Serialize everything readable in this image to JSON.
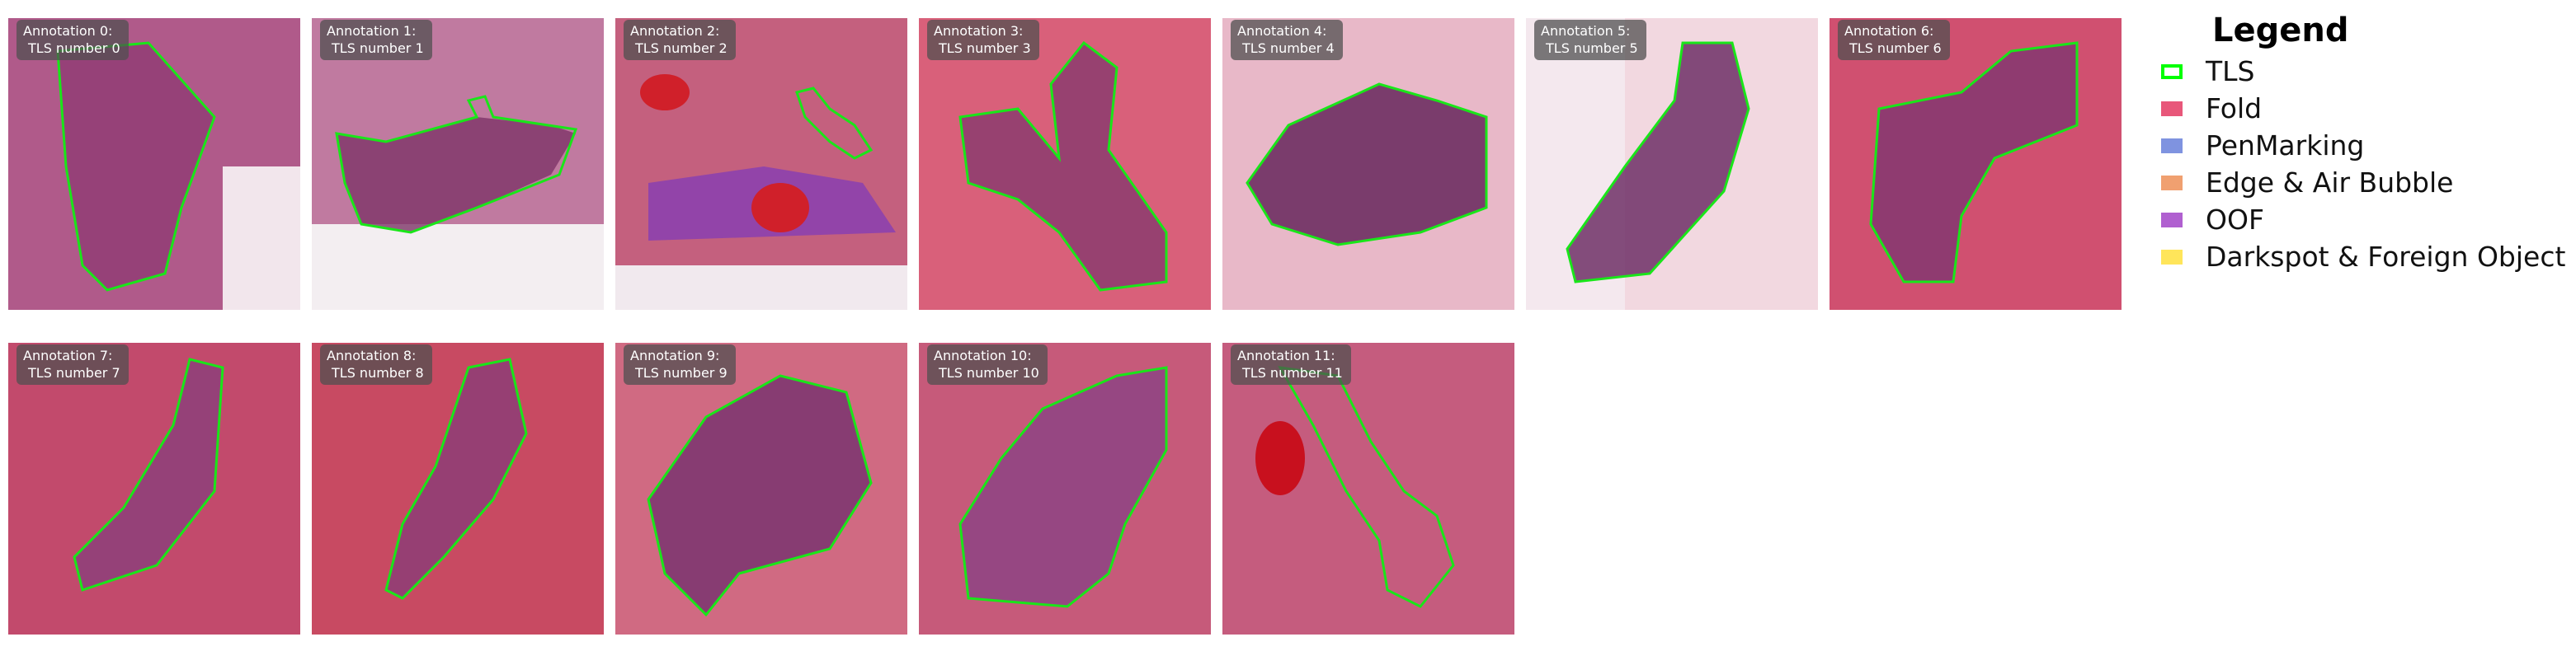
{
  "annotations": [
    {
      "label": "Annotation 0:",
      "sub": "TLS number 0",
      "tint": "#b05a8a",
      "tissue": "#8e3a72"
    },
    {
      "label": "Annotation 1:",
      "sub": "TLS number 1",
      "tint": "#c07aa0",
      "tissue": "#7d3468"
    },
    {
      "label": "Annotation 2:",
      "sub": "TLS number 2",
      "tint": "#c4607e",
      "tissue": "#8a3fb0"
    },
    {
      "label": "Annotation 3:",
      "sub": "TLS number 3",
      "tint": "#d9607a",
      "tissue": "#86396e"
    },
    {
      "label": "Annotation 4:",
      "sub": "TLS number 4",
      "tint": "#e8b8c8",
      "tissue": "#6e2f62"
    },
    {
      "label": "Annotation 5:",
      "sub": "TLS number 5",
      "tint": "#f2d8e0",
      "tissue": "#6f3066"
    },
    {
      "label": "Annotation 6:",
      "sub": "TLS number 6",
      "tint": "#d05070",
      "tissue": "#7e3670"
    },
    {
      "label": "Annotation 7:",
      "sub": "TLS number 7",
      "tint": "#c24a6c",
      "tissue": "#8a3f7c"
    },
    {
      "label": "Annotation 8:",
      "sub": "TLS number 8",
      "tint": "#c84a62",
      "tissue": "#8a3c78"
    },
    {
      "label": "Annotation 9:",
      "sub": "TLS number 9",
      "tint": "#d06a82",
      "tissue": "#7a3470"
    },
    {
      "label": "Annotation 10:",
      "sub": "TLS number 10",
      "tint": "#c65a7a",
      "tissue": "#8a4284"
    },
    {
      "label": "Annotation 11:",
      "sub": "TLS number 11",
      "tint": "#c55c7e",
      "tissue": "#8c4584"
    }
  ],
  "legend": {
    "title": "Legend",
    "items": [
      {
        "label": "TLS",
        "color": "#00ff00",
        "kind": "outline"
      },
      {
        "label": "Fold",
        "color": "#e8577a",
        "kind": "fill"
      },
      {
        "label": "PenMarking",
        "color": "#7f93e0",
        "kind": "fill"
      },
      {
        "label": "Edge & Air Bubble",
        "color": "#f0a070",
        "kind": "fill"
      },
      {
        "label": "OOF",
        "color": "#b060d0",
        "kind": "fill"
      },
      {
        "label": "Darkspot & Foreign Object",
        "color": "#ffe55a",
        "kind": "fill"
      }
    ]
  }
}
